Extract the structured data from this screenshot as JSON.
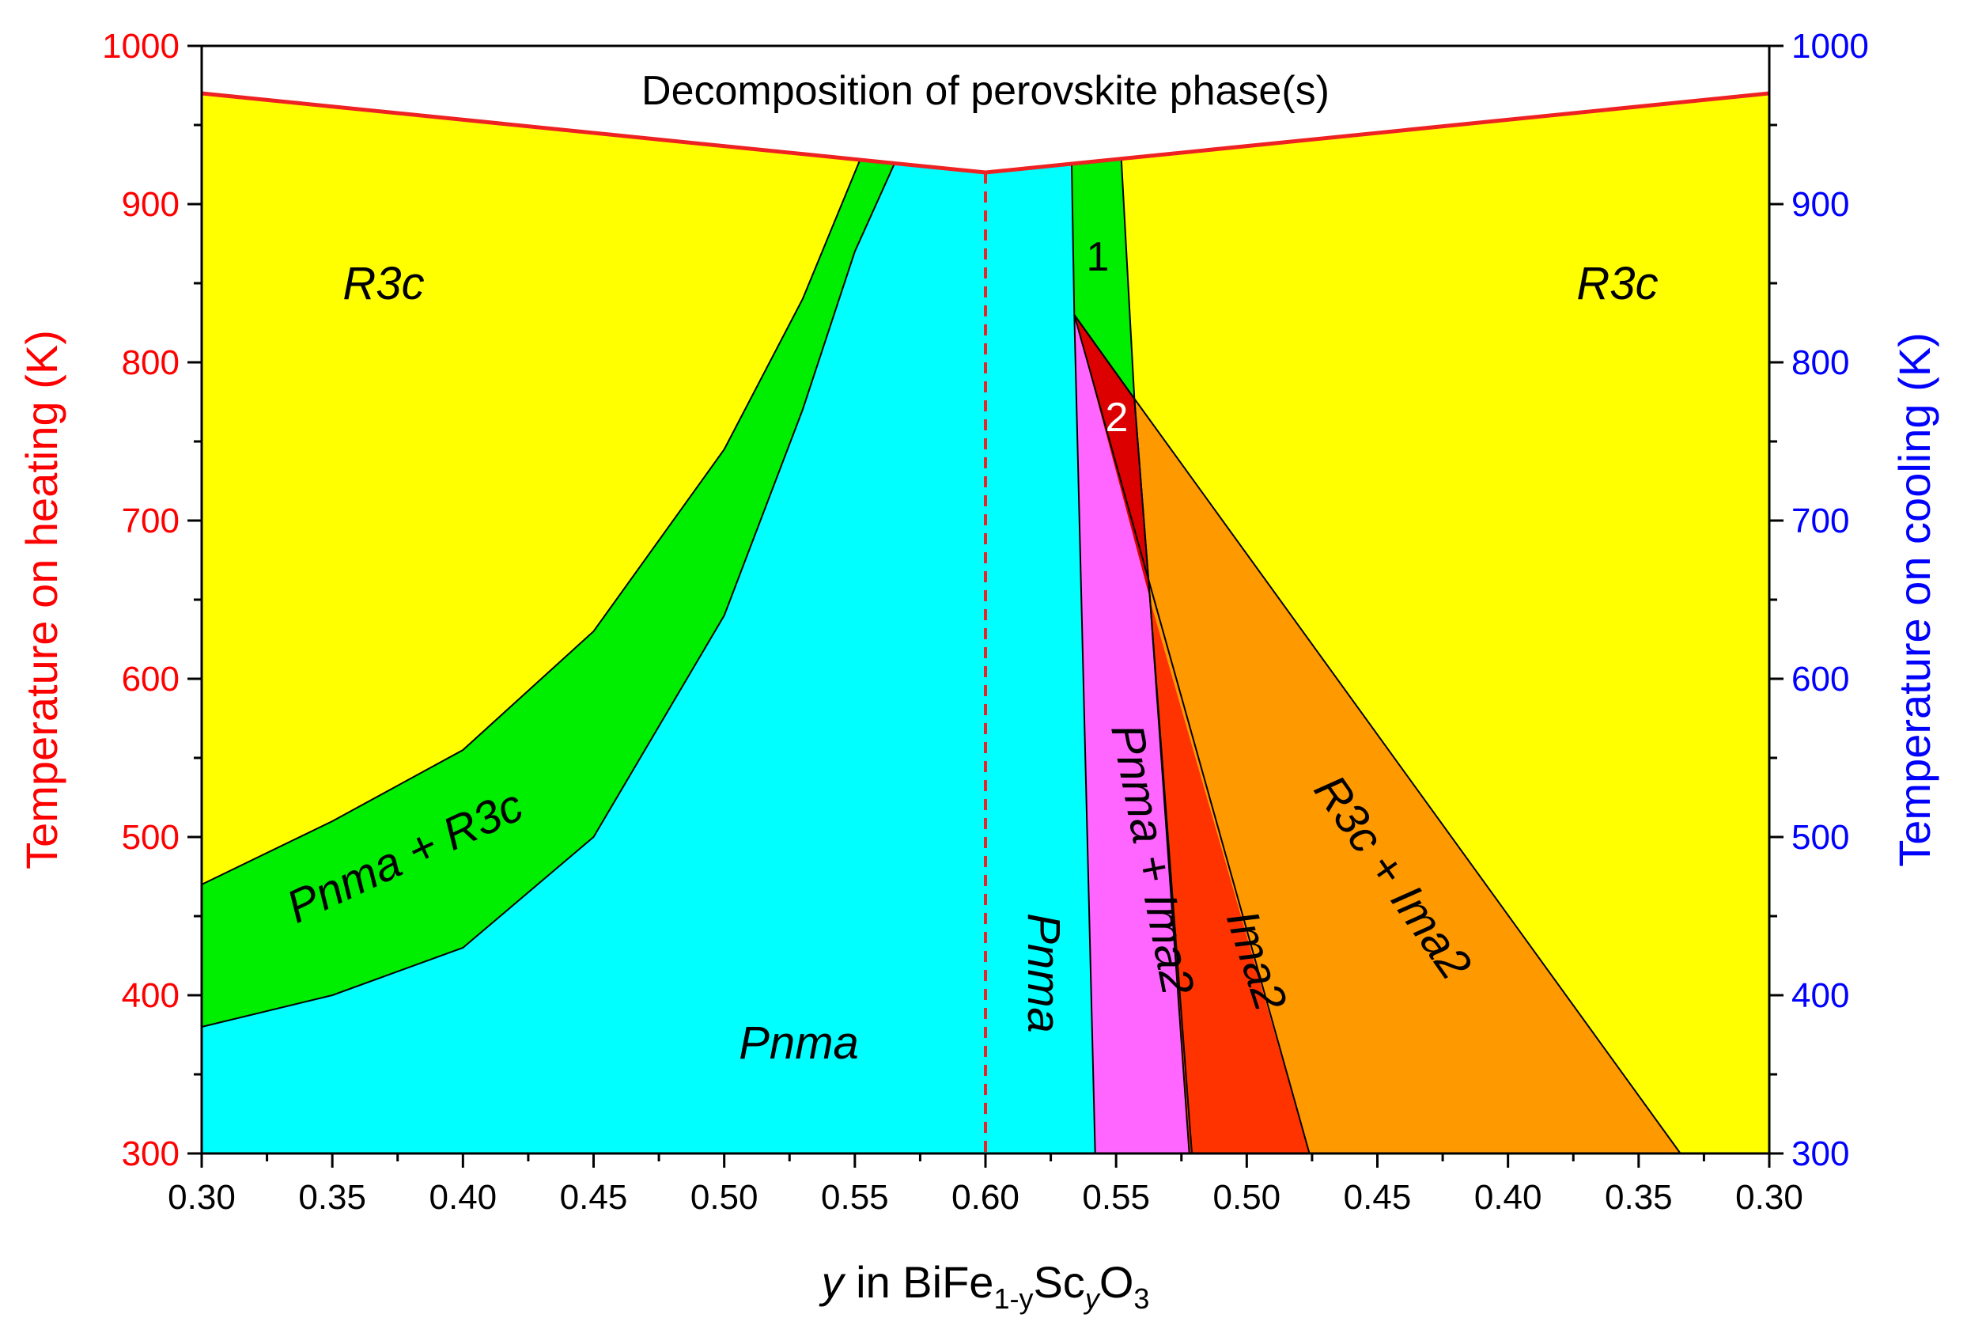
{
  "chart_data": {
    "type": "area",
    "title": "",
    "xlabel": {
      "italic": "y",
      "main": " in BiFe",
      "sub1": "1-y",
      "mid": "Sc",
      "sub2": "y",
      "end": "O",
      "sub3": "3"
    },
    "ylabel_left": "Temperature on heating (K)",
    "ylabel_right": "Temperature on cooling (K)",
    "ylim": [
      300,
      1000
    ],
    "y_ticks": [
      "300",
      "400",
      "500",
      "600",
      "700",
      "800",
      "900",
      "1000"
    ],
    "x_tick_labels": [
      "0.30",
      "0.35",
      "0.40",
      "0.45",
      "0.50",
      "0.55",
      "0.60",
      "0.60",
      "0.55",
      "0.50",
      "0.45",
      "0.40",
      "0.35",
      "0.30"
    ],
    "x_note": "left half: heating (y increasing 0.30 to 0.60); right half: cooling (y decreasing 0.60 to 0.30)",
    "colors": {
      "left_axis": "#ff0000",
      "right_axis": "#0000ff",
      "R3c": "#ffff00",
      "Pnma_R3c": "#00ee00",
      "Pnma": "#00ffff",
      "Pnma_Ima2": "#ff66ff",
      "Ima2": "#ff3300",
      "R3c_Ima2": "#ff9900",
      "region2": "#dd0000",
      "decomposition_line": "#ee2222"
    },
    "decomposition_label": "Decomposition of perovskite phase(s)",
    "decomposition_line": {
      "heating": [
        [
          0.3,
          970
        ],
        [
          0.6,
          920
        ]
      ],
      "cooling": [
        [
          0.6,
          920
        ],
        [
          0.3,
          970
        ]
      ]
    },
    "heating_boundaries": {
      "R3c_to_Pnma+R3c": [
        [
          0.3,
          470
        ],
        [
          0.35,
          510
        ],
        [
          0.4,
          555
        ],
        [
          0.45,
          630
        ],
        [
          0.5,
          745
        ],
        [
          0.53,
          840
        ],
        [
          0.552,
          928
        ]
      ],
      "Pnma+R3c_to_Pnma": [
        [
          0.3,
          380
        ],
        [
          0.35,
          400
        ],
        [
          0.4,
          430
        ],
        [
          0.45,
          500
        ],
        [
          0.5,
          640
        ],
        [
          0.53,
          770
        ],
        [
          0.55,
          870
        ],
        [
          0.565,
          925
        ]
      ]
    },
    "cooling_boundaries": {
      "Pnma_to_Pnma+Ima2": [
        [
          0.567,
          925
        ],
        [
          0.566,
          830
        ],
        [
          0.558,
          300
        ]
      ],
      "region1_right": [
        [
          0.548,
          928
        ],
        [
          0.543,
          777
        ],
        [
          0.537,
          650
        ],
        [
          0.521,
          300
        ]
      ],
      "Ima2_left": [
        [
          0.566,
          830
        ],
        [
          0.543,
          777
        ],
        [
          0.537,
          650
        ],
        [
          0.522,
          300
        ]
      ],
      "R3c+Ima2_left": [
        [
          0.566,
          830
        ],
        [
          0.537,
          650
        ],
        [
          0.476,
          300
        ]
      ],
      "R3c_to_R3c+Ima2": [
        [
          0.543,
          777
        ],
        [
          0.334,
          300
        ]
      ]
    },
    "regions": [
      {
        "label": "R3c",
        "side": "heating"
      },
      {
        "label": "Pnma + R3c",
        "side": "heating"
      },
      {
        "label": "Pnma",
        "side": "heating"
      },
      {
        "label": "Pnma",
        "side": "cooling"
      },
      {
        "label": "1",
        "side": "cooling"
      },
      {
        "label": "2",
        "side": "cooling"
      },
      {
        "label": "Pnma + Ima2",
        "side": "cooling"
      },
      {
        "label": "Ima2",
        "side": "cooling"
      },
      {
        "label": "R3c + Ima2",
        "side": "cooling"
      },
      {
        "label": "R3c",
        "side": "cooling"
      }
    ]
  }
}
